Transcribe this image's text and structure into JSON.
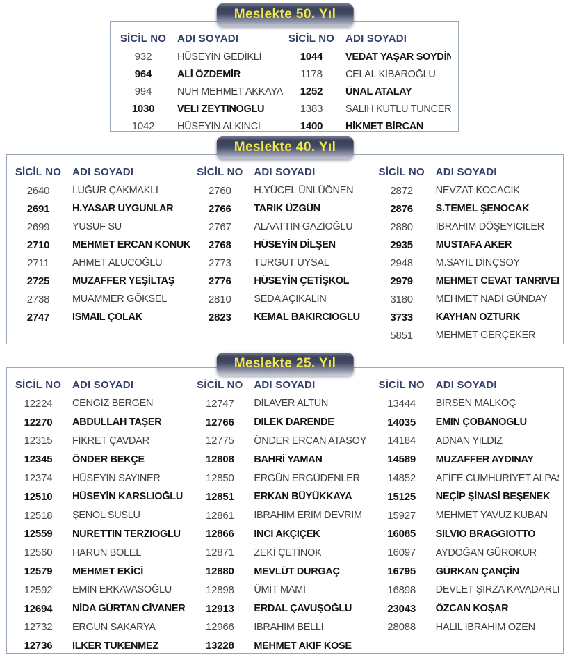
{
  "column_headers": {
    "sicil": "SİCİL NO",
    "name": "ADI SOYADI"
  },
  "colors": {
    "banner_text": "#f2e94a",
    "banner_gradient_top": "#3a4158",
    "banner_gradient_bottom": "#c9ccd9",
    "header_text": "#34406a",
    "regular_text": "#3e3e3e",
    "bold_text": "#141414",
    "box_border": "#9aa7b6"
  },
  "sections": [
    {
      "id": "meslekte-50",
      "title": "Meslekte 50. Yıl",
      "columns": [
        {
          "rows": [
            {
              "sicil": "932",
              "name": "HÜSEYİN GEDİKLİ",
              "bold": false
            },
            {
              "sicil": "964",
              "name": "ALİ ÖZDEMİR",
              "bold": true
            },
            {
              "sicil": "994",
              "name": "NUH MEHMET AKKAYA",
              "bold": false
            },
            {
              "sicil": "1030",
              "name": "VELİ ZEYTİNOĞLU",
              "bold": true
            },
            {
              "sicil": "1042",
              "name": "HÜSEYİN ALKINCI",
              "bold": false
            }
          ]
        },
        {
          "rows": [
            {
              "sicil": "1044",
              "name": "VEDAT YAŞAR SOYDİNÇ",
              "bold": true
            },
            {
              "sicil": "1178",
              "name": "CELAL KİBAROĞLU",
              "bold": false
            },
            {
              "sicil": "1252",
              "name": "ÜNAL ATALAY",
              "bold": true
            },
            {
              "sicil": "1383",
              "name": "SALİH KUTLU TUNCER",
              "bold": false
            },
            {
              "sicil": "1400",
              "name": "HİKMET BİRCAN",
              "bold": true
            }
          ]
        }
      ]
    },
    {
      "id": "meslekte-40",
      "title": "Meslekte 40. Yıl",
      "columns": [
        {
          "rows": [
            {
              "sicil": "2640",
              "name": "İ.UĞUR ÇAKMAKLI",
              "bold": false
            },
            {
              "sicil": "2691",
              "name": "H.YASAR UYGUNLAR",
              "bold": true
            },
            {
              "sicil": "2699",
              "name": "YUSUF SU",
              "bold": false
            },
            {
              "sicil": "2710",
              "name": "MEHMET ERCAN KONUK",
              "bold": true
            },
            {
              "sicil": "2711",
              "name": "AHMET ALUCOĞLU",
              "bold": false
            },
            {
              "sicil": "2725",
              "name": "MUZAFFER YEŞİLTAŞ",
              "bold": true
            },
            {
              "sicil": "2738",
              "name": "MUAMMER GÖKSEL",
              "bold": false
            },
            {
              "sicil": "2747",
              "name": "İSMAİL ÇOLAK",
              "bold": true
            }
          ]
        },
        {
          "rows": [
            {
              "sicil": "2760",
              "name": "H.YÜCEL ÜNLÜÖNEN",
              "bold": false
            },
            {
              "sicil": "2766",
              "name": "TARIK ÜZGÜN",
              "bold": true
            },
            {
              "sicil": "2767",
              "name": "ALAATTİN GAZİOĞLU",
              "bold": false
            },
            {
              "sicil": "2768",
              "name": "HÜSEYİN DİLŞEN",
              "bold": true
            },
            {
              "sicil": "2773",
              "name": "TURGUT UYSAL",
              "bold": false
            },
            {
              "sicil": "2776",
              "name": "HÜSEYİN ÇETİŞKOL",
              "bold": true
            },
            {
              "sicil": "2810",
              "name": "SEDA AÇIKALIN",
              "bold": false
            },
            {
              "sicil": "2823",
              "name": "KEMAL BAKIRCIOĞLU",
              "bold": true
            }
          ]
        },
        {
          "rows": [
            {
              "sicil": "2872",
              "name": "NEVZAT KOCACIK",
              "bold": false
            },
            {
              "sicil": "2876",
              "name": "S.TEMEL ŞENOCAK",
              "bold": true
            },
            {
              "sicil": "2880",
              "name": "İBRAHİM DÖŞEYİCİLER",
              "bold": false
            },
            {
              "sicil": "2935",
              "name": "MUSTAFA AKER",
              "bold": true
            },
            {
              "sicil": "2948",
              "name": "M.SAYIL DİNÇSOY",
              "bold": false
            },
            {
              "sicil": "2979",
              "name": "MEHMET CEVAT TANRIVERDİ",
              "bold": true
            },
            {
              "sicil": "3180",
              "name": "MEHMET NADİ GÜNDAY",
              "bold": false
            },
            {
              "sicil": "3733",
              "name": "KAYHAN ÖZTÜRK",
              "bold": true
            },
            {
              "sicil": "5851",
              "name": "MEHMET GERÇEKER",
              "bold": false
            }
          ]
        }
      ]
    },
    {
      "id": "meslekte-25",
      "title": "Meslekte 25. Yıl",
      "columns": [
        {
          "rows": [
            {
              "sicil": "12224",
              "name": "CENGİZ BERGEN",
              "bold": false
            },
            {
              "sicil": "12270",
              "name": "ABDULLAH TAŞER",
              "bold": true
            },
            {
              "sicil": "12315",
              "name": "FİKRET ÇAVDAR",
              "bold": false
            },
            {
              "sicil": "12345",
              "name": "ÖNDER BEKÇE",
              "bold": true
            },
            {
              "sicil": "12374",
              "name": "HÜSEYİN SAYINER",
              "bold": false
            },
            {
              "sicil": "12510",
              "name": "HÜSEYİN KARSLIOĞLU",
              "bold": true
            },
            {
              "sicil": "12518",
              "name": "ŞENOL SÜSLÜ",
              "bold": false
            },
            {
              "sicil": "12559",
              "name": "NURETTİN TERZİOĞLU",
              "bold": true
            },
            {
              "sicil": "12560",
              "name": "HARUN BOLEL",
              "bold": false
            },
            {
              "sicil": "12579",
              "name": "MEHMET EKİCİ",
              "bold": true
            },
            {
              "sicil": "12592",
              "name": "EMİN ERKAVASOĞLU",
              "bold": false
            },
            {
              "sicil": "12694",
              "name": "NİDA GÜRTAN CİVANER",
              "bold": true
            },
            {
              "sicil": "12732",
              "name": "ERGUN SAKARYA",
              "bold": false
            },
            {
              "sicil": "12736",
              "name": "İLKER TÜKENMEZ",
              "bold": true
            }
          ]
        },
        {
          "rows": [
            {
              "sicil": "12747",
              "name": "DİLAVER ALTUN",
              "bold": false
            },
            {
              "sicil": "12766",
              "name": "DİLEK DARENDE",
              "bold": true
            },
            {
              "sicil": "12775",
              "name": "ÖNDER ERCAN ATASOY",
              "bold": false
            },
            {
              "sicil": "12808",
              "name": "BAHRİ YAMAN",
              "bold": true
            },
            {
              "sicil": "12850",
              "name": "ERGÜN ERGÜDENLER",
              "bold": false
            },
            {
              "sicil": "12851",
              "name": "ERKAN BÜYÜKKAYA",
              "bold": true
            },
            {
              "sicil": "12861",
              "name": "İBRAHİM ERİM DEVRİM",
              "bold": false
            },
            {
              "sicil": "12866",
              "name": "İNCİ AKÇİÇEK",
              "bold": true
            },
            {
              "sicil": "12871",
              "name": "ZEKİ ÇETİNOK",
              "bold": false
            },
            {
              "sicil": "12880",
              "name": "MEVLÜT DURGAÇ",
              "bold": true
            },
            {
              "sicil": "12898",
              "name": "ÜMİT MAMİ",
              "bold": false
            },
            {
              "sicil": "12913",
              "name": "ERDAL ÇAVUŞOĞLU",
              "bold": true
            },
            {
              "sicil": "12966",
              "name": "İBRAHİM BELLİ",
              "bold": false
            },
            {
              "sicil": "13228",
              "name": "MEHMET AKİF KÖSE",
              "bold": true
            }
          ]
        },
        {
          "rows": [
            {
              "sicil": "13444",
              "name": "BİRSEN MALKOÇ",
              "bold": false
            },
            {
              "sicil": "14035",
              "name": "EMİN ÇOBANOĞLU",
              "bold": true
            },
            {
              "sicil": "14184",
              "name": "ADNAN YILDIZ",
              "bold": false
            },
            {
              "sicil": "14589",
              "name": "MUZAFFER AYDINAY",
              "bold": true
            },
            {
              "sicil": "14852",
              "name": "AFİFE CUMHURİYET ALPASLAN",
              "bold": false
            },
            {
              "sicil": "15125",
              "name": "NEÇİP ŞİNASİ BEŞENEK",
              "bold": true
            },
            {
              "sicil": "15927",
              "name": "MEHMET YAVUZ KUBAN",
              "bold": false
            },
            {
              "sicil": "16085",
              "name": "SİLVİO BRAGGİOTTO",
              "bold": true
            },
            {
              "sicil": "16097",
              "name": "AYDOĞAN GÜROKUR",
              "bold": false
            },
            {
              "sicil": "16795",
              "name": "GÜRKAN ÇANÇİN",
              "bold": true
            },
            {
              "sicil": "16898",
              "name": "DEVLET ŞİRZA KAVADARLI",
              "bold": false
            },
            {
              "sicil": "23043",
              "name": "ÖZCAN KOŞAR",
              "bold": true
            },
            {
              "sicil": "28088",
              "name": "HALİL İBRAHİM ÖZEN",
              "bold": false
            }
          ]
        }
      ]
    }
  ]
}
